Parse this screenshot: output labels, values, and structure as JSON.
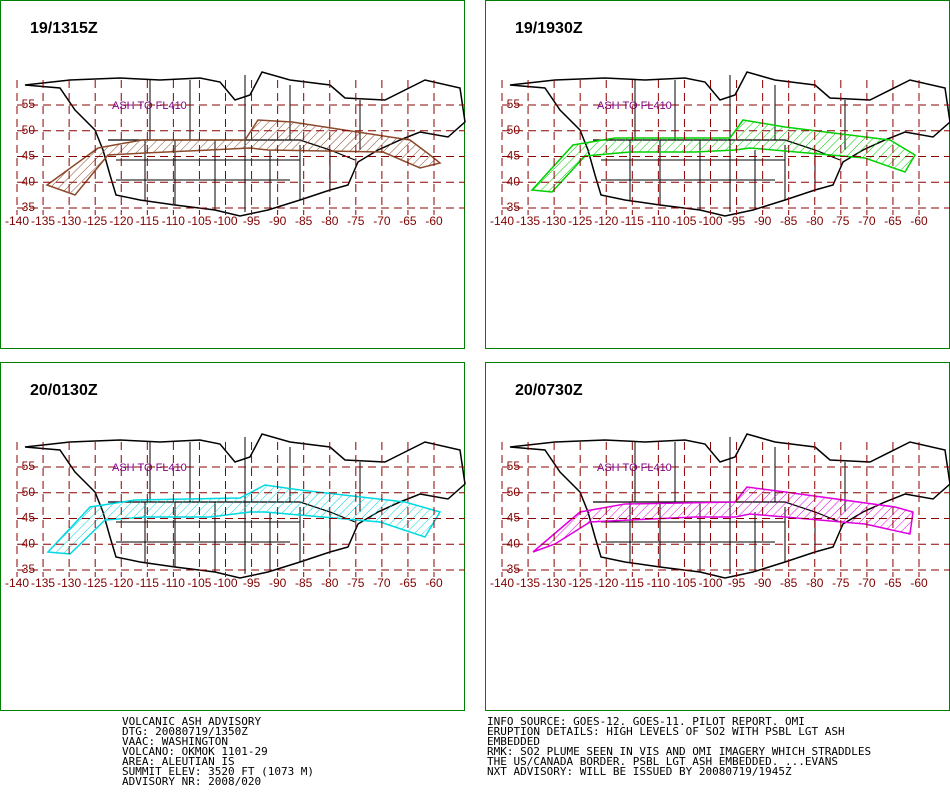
{
  "panels": [
    {
      "time": "19/1315Z",
      "label": "ASH TO FL410"
    },
    {
      "time": "19/1930Z",
      "label": "ASH TO FL410"
    },
    {
      "time": "20/0130Z",
      "label": "ASH TO FL410"
    },
    {
      "time": "20/0730Z",
      "label": "ASH TO FL410"
    }
  ],
  "lat_ticks": [
    55,
    50,
    45,
    40,
    35
  ],
  "lon_ticks": [
    -140,
    -135,
    -130,
    -125,
    -120,
    -115,
    -110,
    -105,
    -100,
    -95,
    -90,
    -85,
    -80,
    -75,
    -70,
    -65,
    -60
  ],
  "advisory_left": [
    "VOLCANIC ASH ADVISORY",
    "DTG: 20080719/1350Z",
    "VAAC: WASHINGTON",
    "VOLCANO: OKMOK 1101-29",
    "AREA: ALEUTIAN IS",
    "SUMMIT ELEV: 3520 FT (1073 M)",
    "ADVISORY NR: 2008/020"
  ],
  "advisory_right": [
    "INFO SOURCE: GOES-12. GOES-11. PILOT REPORT. OMI",
    "ERUPTION DETAILS: HIGH LEVELS OF SO2 WITH PSBL LGT ASH",
    "EMBEDDED",
    "RMK: SO2 PLUME SEEN IN VIS AND OMI IMAGERY WHICH STRADDLES",
    "THE US/CANADA BORDER. PSBL LGT ASH EMBEDDED. ...EVANS",
    "NXT ADVISORY: WILL BE ISSUED BY 20080719/1945Z"
  ]
}
